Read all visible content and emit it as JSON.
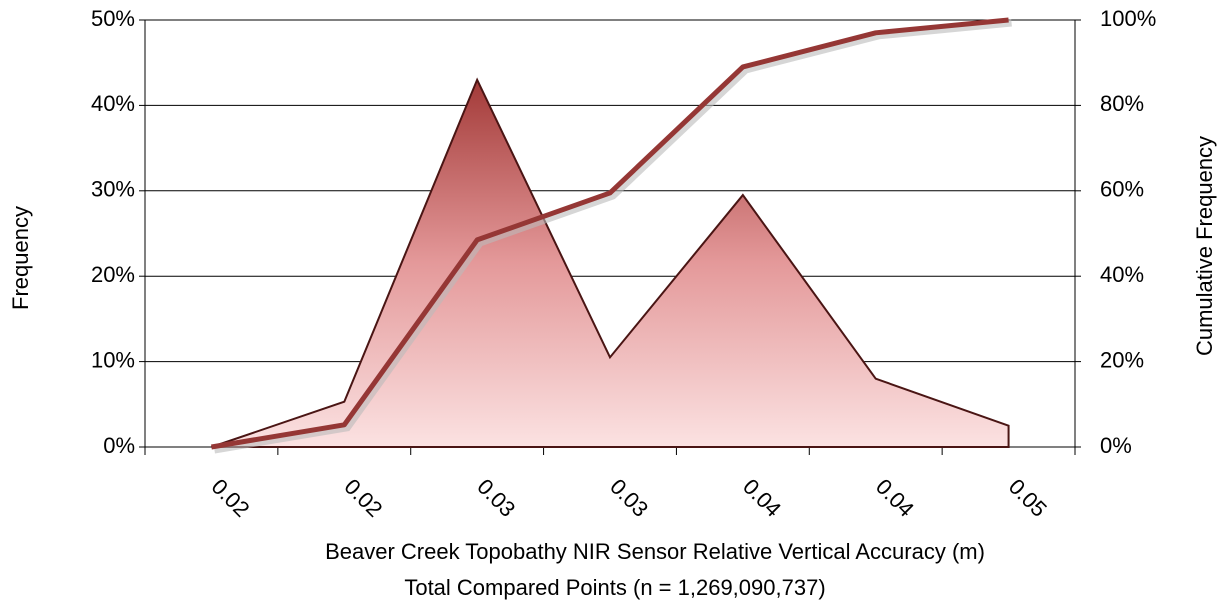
{
  "chart_data": {
    "type": "area",
    "categories": [
      "0.02",
      "0.02",
      "0.03",
      "0.03",
      "0.04",
      "0.04",
      "0.05"
    ],
    "series": [
      {
        "type": "area",
        "color": "#c0504d",
        "values": [
          0,
          5.3,
          43,
          10.5,
          29.5,
          8,
          2.5
        ]
      },
      {
        "type": "line",
        "axis": "y2",
        "color": "#953735",
        "values": [
          0,
          5.2,
          48.5,
          59.5,
          89,
          97,
          100
        ]
      }
    ],
    "xlabel": [
      "Beaver Creek Topobathy NIR Sensor  Relative Vertical Accuracy (m)",
      "Total Compared Points (n = 1,269,090,737)"
    ],
    "ylabel": "Frequency",
    "y2label": "Cumulative Frequency",
    "ylim": [
      0,
      50
    ],
    "yticks": [
      {
        "value": 0,
        "label": "0%"
      },
      {
        "value": 10,
        "label": "10%"
      },
      {
        "value": 20,
        "label": "20%"
      },
      {
        "value": 30,
        "label": "30%"
      },
      {
        "value": 40,
        "label": "40%"
      },
      {
        "value": 50,
        "label": "50%"
      }
    ],
    "y2lim": [
      0,
      100
    ],
    "y2ticks": [
      {
        "value": 0,
        "label": "0%"
      },
      {
        "value": 20,
        "label": "20%"
      },
      {
        "value": 40,
        "label": "40%"
      },
      {
        "value": 60,
        "label": "60%"
      },
      {
        "value": 80,
        "label": "80%"
      },
      {
        "value": 100,
        "label": "100%"
      }
    ],
    "grid": true
  }
}
